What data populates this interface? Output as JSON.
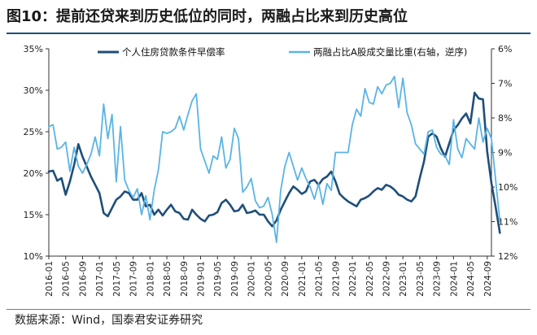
{
  "header": {
    "title": "图10：提前还贷来到历史低位的同时，两融占比来到历史高位"
  },
  "footer": {
    "source": "数据来源：Wind，国泰君安证券研究"
  },
  "colors": {
    "series_1": "#1f4e79",
    "series_2": "#5ab4e5",
    "title_rule": "#1f4e79"
  },
  "chart_data": {
    "type": "line",
    "title": "",
    "x_tick_labels": [
      "2016-01",
      "2016-05",
      "2016-09",
      "2017-01",
      "2017-05",
      "2017-09",
      "2018-01",
      "2018-05",
      "2018-09",
      "2019-01",
      "2019-05",
      "2019-09",
      "2020-01",
      "2020-05",
      "2020-09",
      "2021-01",
      "2021-05",
      "2021-09",
      "2022-01",
      "2022-05",
      "2022-09",
      "2023-01",
      "2023-05",
      "2023-09",
      "2024-01",
      "2024-05",
      "2024-09"
    ],
    "x_range": [
      "2016-01",
      "2024-10"
    ],
    "y_left": {
      "ticks": [
        "10%",
        "15%",
        "20%",
        "25%",
        "30%",
        "35%"
      ],
      "lim": [
        10,
        35
      ],
      "unit": "%"
    },
    "y_right": {
      "ticks": [
        "6%",
        "7%",
        "8%",
        "9%",
        "10%",
        "11%",
        "12%"
      ],
      "lim": [
        6,
        12
      ],
      "reversed": true,
      "unit": "%"
    },
    "legend_position": "top",
    "grid": false,
    "series": [
      {
        "name": "个人住房贷款条件早偿率",
        "axis": "left",
        "color": "#1f4e79",
        "line_width": 2.6,
        "points": [
          [
            "2016-01",
            20.2
          ],
          [
            "2016-02",
            20.3
          ],
          [
            "2016-03",
            19.1
          ],
          [
            "2016-04",
            19.4
          ],
          [
            "2016-05",
            17.4
          ],
          [
            "2016-06",
            19.0
          ],
          [
            "2016-07",
            21.0
          ],
          [
            "2016-08",
            23.5
          ],
          [
            "2016-09",
            22.0
          ],
          [
            "2016-10",
            20.8
          ],
          [
            "2016-11",
            19.6
          ],
          [
            "2016-12",
            18.6
          ],
          [
            "2017-01",
            17.6
          ],
          [
            "2017-02",
            15.2
          ],
          [
            "2017-03",
            14.8
          ],
          [
            "2017-04",
            15.8
          ],
          [
            "2017-05",
            16.8
          ],
          [
            "2017-06",
            17.2
          ],
          [
            "2017-07",
            17.8
          ],
          [
            "2017-08",
            17.6
          ],
          [
            "2017-09",
            16.8
          ],
          [
            "2017-10",
            16.8
          ],
          [
            "2017-11",
            17.6
          ],
          [
            "2017-12",
            16.0
          ],
          [
            "2018-01",
            16.2
          ],
          [
            "2018-02",
            15.0
          ],
          [
            "2018-03",
            15.6
          ],
          [
            "2018-04",
            14.9
          ],
          [
            "2018-05",
            15.6
          ],
          [
            "2018-06",
            16.2
          ],
          [
            "2018-07",
            15.4
          ],
          [
            "2018-08",
            15.2
          ],
          [
            "2018-09",
            14.5
          ],
          [
            "2018-10",
            14.4
          ],
          [
            "2018-11",
            15.6
          ],
          [
            "2018-12",
            15.0
          ],
          [
            "2019-01",
            14.5
          ],
          [
            "2019-02",
            14.2
          ],
          [
            "2019-03",
            14.9
          ],
          [
            "2019-04",
            15.0
          ],
          [
            "2019-05",
            15.3
          ],
          [
            "2019-06",
            16.4
          ],
          [
            "2019-07",
            16.8
          ],
          [
            "2019-08",
            16.2
          ],
          [
            "2019-09",
            15.4
          ],
          [
            "2019-10",
            15.5
          ],
          [
            "2019-11",
            16.2
          ],
          [
            "2019-12",
            15.2
          ],
          [
            "2020-01",
            15.3
          ],
          [
            "2020-02",
            15.5
          ],
          [
            "2020-03",
            15.0
          ],
          [
            "2020-04",
            15.0
          ],
          [
            "2020-05",
            14.2
          ],
          [
            "2020-06",
            13.6
          ],
          [
            "2020-07",
            14.3
          ],
          [
            "2020-08",
            15.6
          ],
          [
            "2020-09",
            16.6
          ],
          [
            "2020-10",
            17.6
          ],
          [
            "2020-11",
            18.4
          ],
          [
            "2020-12",
            18.0
          ],
          [
            "2021-01",
            17.5
          ],
          [
            "2021-02",
            17.8
          ],
          [
            "2021-03",
            19.0
          ],
          [
            "2021-04",
            19.2
          ],
          [
            "2021-05",
            18.6
          ],
          [
            "2021-06",
            19.3
          ],
          [
            "2021-07",
            19.6
          ],
          [
            "2021-08",
            20.2
          ],
          [
            "2021-09",
            19.0
          ],
          [
            "2021-10",
            17.5
          ],
          [
            "2021-11",
            17.0
          ],
          [
            "2021-12",
            16.6
          ],
          [
            "2022-01",
            16.3
          ],
          [
            "2022-02",
            16.0
          ],
          [
            "2022-03",
            16.8
          ],
          [
            "2022-04",
            17.0
          ],
          [
            "2022-05",
            17.3
          ],
          [
            "2022-06",
            17.8
          ],
          [
            "2022-07",
            18.2
          ],
          [
            "2022-08",
            18.0
          ],
          [
            "2022-09",
            18.6
          ],
          [
            "2022-10",
            18.4
          ],
          [
            "2022-11",
            18.0
          ],
          [
            "2022-12",
            17.4
          ],
          [
            "2023-01",
            17.2
          ],
          [
            "2023-02",
            16.8
          ],
          [
            "2023-03",
            16.6
          ],
          [
            "2023-04",
            17.2
          ],
          [
            "2023-05",
            19.4
          ],
          [
            "2023-06",
            21.4
          ],
          [
            "2023-07",
            24.4
          ],
          [
            "2023-08",
            24.8
          ],
          [
            "2023-09",
            24.4
          ],
          [
            "2023-10",
            23.0
          ],
          [
            "2023-11",
            22.0
          ],
          [
            "2023-12",
            23.6
          ],
          [
            "2024-01",
            25.2
          ],
          [
            "2024-02",
            25.8
          ],
          [
            "2024-03",
            26.6
          ],
          [
            "2024-04",
            27.2
          ],
          [
            "2024-05",
            26.0
          ],
          [
            "2024-06",
            29.7
          ],
          [
            "2024-07",
            29.0
          ],
          [
            "2024-08",
            28.9
          ],
          [
            "2024-09",
            22.6
          ],
          [
            "2024-10",
            18.8
          ],
          [
            "2024-11",
            15.9
          ],
          [
            "2024-12",
            12.8
          ]
        ]
      },
      {
        "name": "两融占比A股成交量比重(右轴，逆序)",
        "axis": "right",
        "color": "#5ab4e5",
        "line_width": 1.8,
        "points": [
          [
            "2016-01",
            8.25
          ],
          [
            "2016-02",
            8.2
          ],
          [
            "2016-03",
            8.9
          ],
          [
            "2016-04",
            8.85
          ],
          [
            "2016-05",
            8.7
          ],
          [
            "2016-06",
            9.55
          ],
          [
            "2016-07",
            8.85
          ],
          [
            "2016-08",
            9.4
          ],
          [
            "2016-09",
            9.6
          ],
          [
            "2016-10",
            9.35
          ],
          [
            "2016-11",
            9.05
          ],
          [
            "2016-12",
            8.55
          ],
          [
            "2017-01",
            9.1
          ],
          [
            "2017-02",
            7.6
          ],
          [
            "2017-03",
            8.6
          ],
          [
            "2017-04",
            7.9
          ],
          [
            "2017-05",
            9.85
          ],
          [
            "2017-06",
            8.25
          ],
          [
            "2017-07",
            9.8
          ],
          [
            "2017-08",
            10.1
          ],
          [
            "2017-09",
            10.3
          ],
          [
            "2017-10",
            10.05
          ],
          [
            "2017-11",
            10.8
          ],
          [
            "2017-12",
            10.25
          ],
          [
            "2018-01",
            10.95
          ],
          [
            "2018-02",
            10.1
          ],
          [
            "2018-03",
            9.5
          ],
          [
            "2018-04",
            8.4
          ],
          [
            "2018-05",
            8.45
          ],
          [
            "2018-06",
            8.4
          ],
          [
            "2018-07",
            8.3
          ],
          [
            "2018-08",
            7.95
          ],
          [
            "2018-09",
            8.35
          ],
          [
            "2018-10",
            7.9
          ],
          [
            "2018-11",
            7.5
          ],
          [
            "2018-12",
            7.3
          ],
          [
            "2019-01",
            8.9
          ],
          [
            "2019-02",
            9.25
          ],
          [
            "2019-03",
            9.6
          ],
          [
            "2019-04",
            9.1
          ],
          [
            "2019-05",
            9.2
          ],
          [
            "2019-06",
            8.55
          ],
          [
            "2019-07",
            9.45
          ],
          [
            "2019-08",
            9.2
          ],
          [
            "2019-09",
            8.3
          ],
          [
            "2019-10",
            8.6
          ],
          [
            "2019-11",
            10.15
          ],
          [
            "2019-12",
            10.0
          ],
          [
            "2020-01",
            9.75
          ],
          [
            "2020-02",
            10.4
          ],
          [
            "2020-03",
            10.6
          ],
          [
            "2020-04",
            10.55
          ],
          [
            "2020-05",
            10.3
          ],
          [
            "2020-06",
            10.8
          ],
          [
            "2020-07",
            11.6
          ],
          [
            "2020-08",
            10.1
          ],
          [
            "2020-09",
            9.4
          ],
          [
            "2020-10",
            9.0
          ],
          [
            "2020-11",
            9.4
          ],
          [
            "2020-12",
            9.8
          ],
          [
            "2021-01",
            9.45
          ],
          [
            "2021-02",
            9.75
          ],
          [
            "2021-03",
            10.0
          ],
          [
            "2021-04",
            10.35
          ],
          [
            "2021-05",
            9.9
          ],
          [
            "2021-06",
            10.5
          ],
          [
            "2021-07",
            9.9
          ],
          [
            "2021-08",
            10.1
          ],
          [
            "2021-09",
            9.0
          ],
          [
            "2021-10",
            9.0
          ],
          [
            "2021-11",
            9.0
          ],
          [
            "2021-12",
            9.0
          ],
          [
            "2022-01",
            8.2
          ],
          [
            "2022-02",
            7.75
          ],
          [
            "2022-03",
            7.95
          ],
          [
            "2022-04",
            7.15
          ],
          [
            "2022-05",
            7.55
          ],
          [
            "2022-06",
            7.6
          ],
          [
            "2022-07",
            7.1
          ],
          [
            "2022-08",
            7.3
          ],
          [
            "2022-09",
            7.05
          ],
          [
            "2022-10",
            7.0
          ],
          [
            "2022-11",
            6.8
          ],
          [
            "2022-12",
            7.7
          ],
          [
            "2023-01",
            6.85
          ],
          [
            "2023-02",
            7.85
          ],
          [
            "2023-03",
            8.2
          ],
          [
            "2023-04",
            8.75
          ],
          [
            "2023-05",
            8.9
          ],
          [
            "2023-06",
            9.05
          ],
          [
            "2023-07",
            8.4
          ],
          [
            "2023-08",
            8.35
          ],
          [
            "2023-09",
            8.85
          ],
          [
            "2023-10",
            9.05
          ],
          [
            "2023-11",
            9.1
          ],
          [
            "2023-12",
            9.35
          ],
          [
            "2024-01",
            8.05
          ],
          [
            "2024-02",
            8.9
          ],
          [
            "2024-03",
            9.15
          ],
          [
            "2024-04",
            8.6
          ],
          [
            "2024-05",
            8.75
          ],
          [
            "2024-06",
            8.9
          ],
          [
            "2024-07",
            8.0
          ],
          [
            "2024-08",
            8.7
          ],
          [
            "2024-09",
            8.3
          ],
          [
            "2024-10",
            8.6
          ],
          [
            "2024-11",
            9.8
          ],
          [
            "2024-12",
            11.0
          ]
        ]
      }
    ]
  }
}
